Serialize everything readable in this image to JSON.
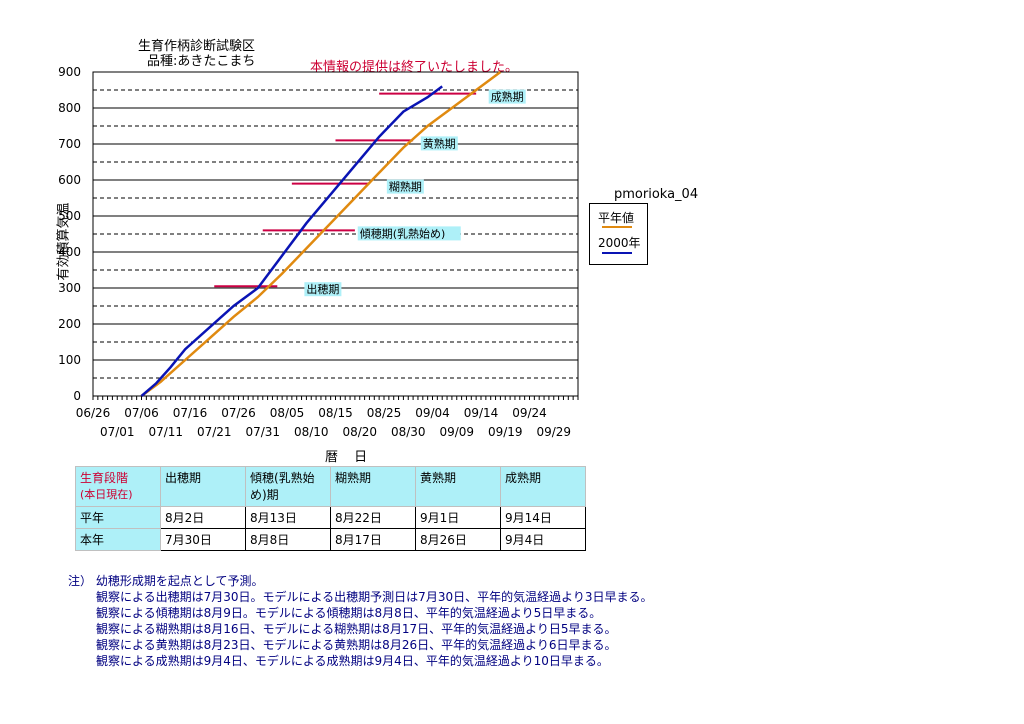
{
  "header": {
    "title_line1": "生育作柄診断試験区",
    "title_line2": "品種:あきたこまち",
    "notice": "本情報の提供は終了いたしました。"
  },
  "chart_data": {
    "type": "line",
    "ylabel": "有効積算気温",
    "xlabel": "暦 日",
    "ylim": [
      0,
      900
    ],
    "yticks": [
      0,
      100,
      200,
      300,
      400,
      500,
      600,
      700,
      800,
      900
    ],
    "xlim": [
      "06/26",
      "10/04"
    ],
    "xticks_top": [
      "06/26",
      "07/06",
      "07/16",
      "07/26",
      "08/05",
      "08/15",
      "08/25",
      "09/04",
      "09/14",
      "09/24"
    ],
    "xticks_bottom": [
      "07/01",
      "07/11",
      "07/21",
      "07/31",
      "08/10",
      "08/20",
      "08/30",
      "09/09",
      "09/19",
      "09/29"
    ],
    "grid": "horizontal",
    "legend_title": "pmorioka_04",
    "legend_position": "right",
    "series": [
      {
        "name": "平年値",
        "color": "#e08a10",
        "x": [
          "07/06",
          "07/10",
          "07/15",
          "07/20",
          "07/25",
          "07/30",
          "08/04",
          "08/09",
          "08/14",
          "08/19",
          "08/24",
          "08/29",
          "09/03",
          "09/08",
          "09/13",
          "09/18"
        ],
        "y": [
          0,
          40,
          100,
          160,
          220,
          275,
          340,
          410,
          480,
          550,
          620,
          690,
          750,
          800,
          850,
          900
        ]
      },
      {
        "name": "2000年",
        "color": "#0a14b4",
        "x": [
          "07/06",
          "07/09",
          "07/12",
          "07/15",
          "07/20",
          "07/25",
          "07/30",
          "08/04",
          "08/09",
          "08/14",
          "08/19",
          "08/24",
          "08/29",
          "09/03",
          "09/06"
        ],
        "y": [
          0,
          35,
          80,
          130,
          190,
          250,
          300,
          390,
          480,
          560,
          640,
          720,
          790,
          830,
          860
        ]
      }
    ],
    "stage_markers": [
      {
        "label": "出穂期",
        "y": 305,
        "x_start": "07/21",
        "x_end": "08/03",
        "label_x": "08/09"
      },
      {
        "label": "傾穂期(乳熱始め)",
        "y": 460,
        "x_start": "07/31",
        "x_end": "08/19",
        "label_x": "08/20"
      },
      {
        "label": "糊熟期",
        "y": 590,
        "x_start": "08/06",
        "x_end": "08/22",
        "label_x": "08/26"
      },
      {
        "label": "黄熟期",
        "y": 710,
        "x_start": "08/15",
        "x_end": "08/31",
        "label_x": "09/02"
      },
      {
        "label": "成熟期",
        "y": 840,
        "x_start": "08/24",
        "x_end": "09/13",
        "label_x": "09/16"
      }
    ],
    "stage_marker_color": "#cc0044"
  },
  "table": {
    "header_label": "生育段階",
    "header_sub": "(本日現在)",
    "columns": [
      "出穂期",
      "傾穂(乳熟始め)期",
      "糊熟期",
      "黄熟期",
      "成熟期"
    ],
    "rows": [
      {
        "label": "平年",
        "values": [
          "8月2日",
          "8月13日",
          "8月22日",
          "9月1日",
          "9月14日"
        ]
      },
      {
        "label": "本年",
        "values": [
          "7月30日",
          "8月8日",
          "8月17日",
          "8月26日",
          "9月4日"
        ]
      }
    ]
  },
  "notes": [
    "注） 幼穂形成期を起点として予測。",
    "観察による出穂期は7月30日。モデルによる出穂期予測日は7月30日、平年的気温経過より3日早まる。",
    "観察による傾穂期は8月9日。モデルによる傾穂期は8月8日、平年的気温経過より5日早まる。",
    "観察による糊熟期は8月16日、モデルによる糊熟期は8月17日、平年的気温経過より日5早まる。",
    "観察による黄熟期は8月23日、モデルによる黄熟期は8月26日、平年的気温経過より6日早まる。",
    "観察による成熟期は9月4日、モデルによる成熟期は9月4日、平年的気温経過より10日早まる。"
  ]
}
